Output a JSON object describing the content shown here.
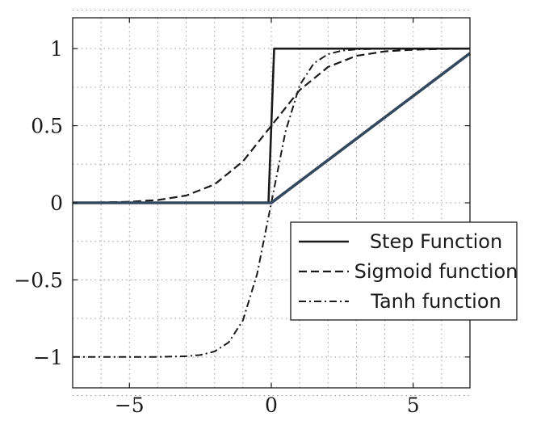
{
  "chart_data": {
    "type": "line",
    "title": "",
    "xlabel": "",
    "ylabel": "",
    "xlim": [
      -7,
      7
    ],
    "ylim": [
      -1.2,
      1.2
    ],
    "grid": true,
    "legend_position": "bottom-right",
    "x_ticks": [
      {
        "value": -5,
        "label": "−5"
      },
      {
        "value": 0,
        "label": "0"
      },
      {
        "value": 5,
        "label": "5"
      }
    ],
    "y_ticks": [
      {
        "value": 1,
        "label": "1"
      },
      {
        "value": 0.5,
        "label": "0.5"
      },
      {
        "value": 0,
        "label": "0"
      },
      {
        "value": -0.5,
        "label": "−0.5"
      },
      {
        "value": -1,
        "label": "−1"
      }
    ],
    "series": [
      {
        "name": "Step Function",
        "style": "solid",
        "color": "#1a1a1a",
        "x": [
          -7,
          -0.1,
          0.1,
          7
        ],
        "y": [
          0,
          0,
          1,
          1
        ]
      },
      {
        "name": "Sigmoid function",
        "style": "dashed",
        "color": "#1a1a1a",
        "x": [
          -7,
          -6,
          -5,
          -4,
          -3,
          -2,
          -1,
          0,
          1,
          2,
          3,
          4,
          5,
          6,
          7
        ],
        "y": [
          0.0009,
          0.0025,
          0.0067,
          0.018,
          0.047,
          0.119,
          0.269,
          0.5,
          0.731,
          0.881,
          0.953,
          0.982,
          0.993,
          0.9975,
          0.9991
        ]
      },
      {
        "name": "Tanh function",
        "style": "dashdot",
        "color": "#1a1a1a",
        "x": [
          -7,
          -6,
          -5,
          -4,
          -3,
          -2.5,
          -2,
          -1.5,
          -1,
          -0.5,
          0,
          0.5,
          1,
          1.5,
          2,
          2.5,
          3,
          4,
          5,
          6,
          7
        ],
        "y": [
          -1,
          -1,
          -0.9999,
          -0.9993,
          -0.995,
          -0.987,
          -0.964,
          -0.905,
          -0.762,
          -0.462,
          0,
          0.462,
          0.762,
          0.905,
          0.964,
          0.987,
          0.995,
          0.9993,
          0.9999,
          1,
          1
        ]
      },
      {
        "name": "",
        "style": "solid-thick",
        "color": "#34495e",
        "x": [
          -7,
          0,
          7
        ],
        "y": [
          0,
          0,
          0.97
        ]
      }
    ]
  }
}
